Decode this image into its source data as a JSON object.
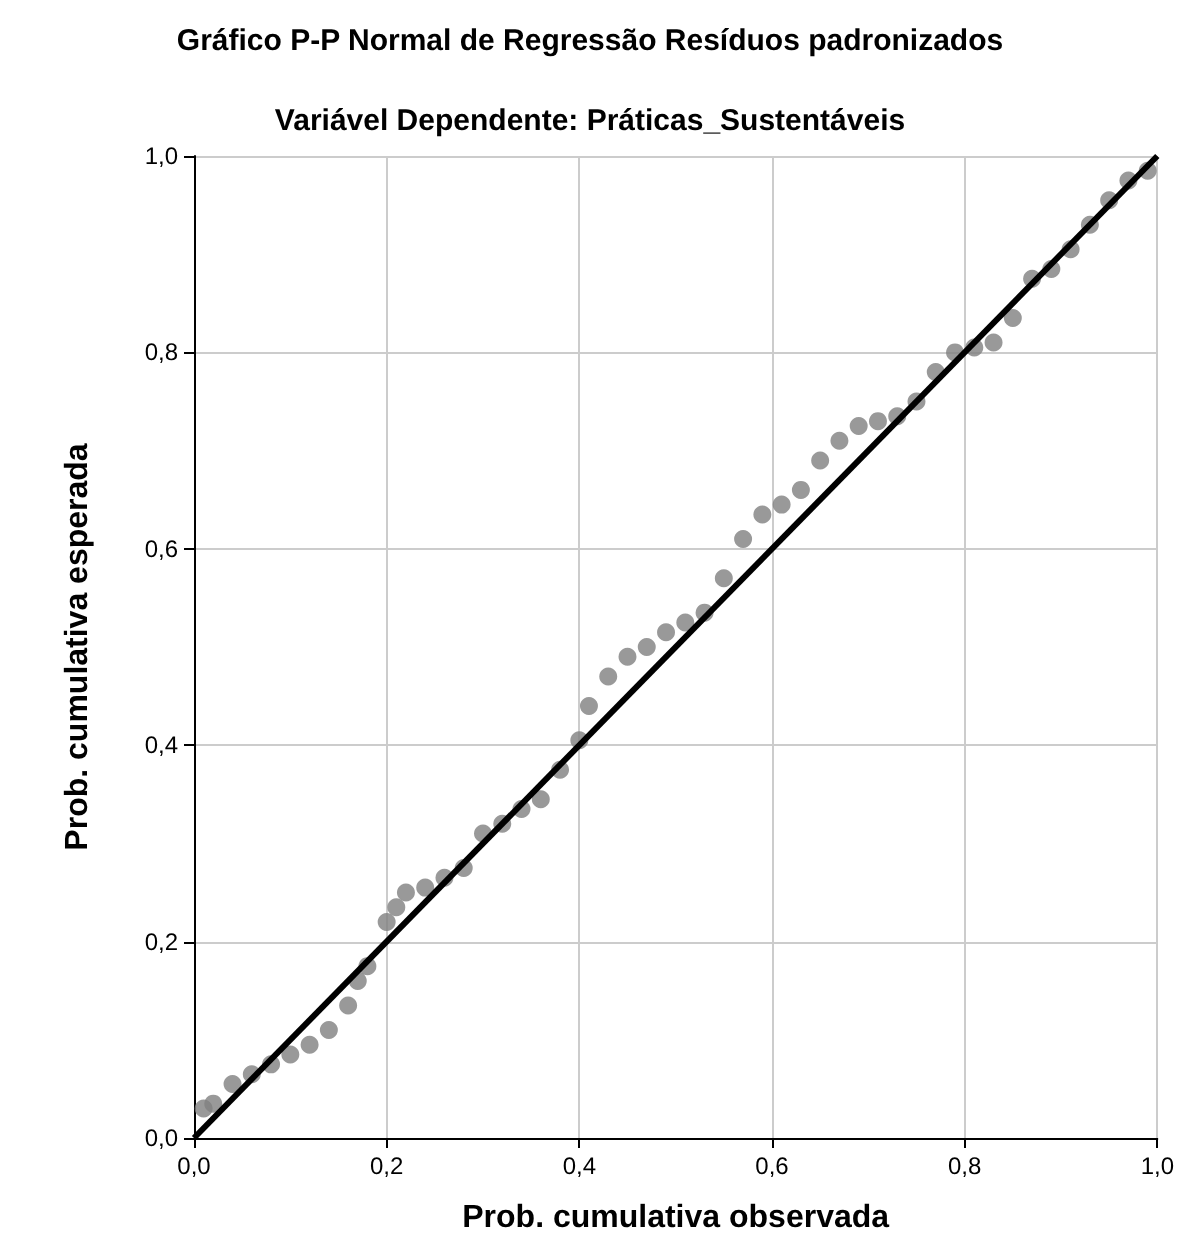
{
  "chart_data": {
    "type": "scatter",
    "title": "Gráfico P-P Normal de Regressão Resíduos padronizados",
    "subtitle": "Variável Dependente: Práticas_Sustentáveis",
    "xlabel": "Prob. cumulativa observada",
    "ylabel": "Prob. cumulativa esperada",
    "xlim": [
      0,
      1
    ],
    "ylim": [
      0,
      1
    ],
    "xticks": [
      {
        "value": 0,
        "label": "0,0"
      },
      {
        "value": 0.2,
        "label": "0,2"
      },
      {
        "value": 0.4,
        "label": "0,4"
      },
      {
        "value": 0.6,
        "label": "0,6"
      },
      {
        "value": 0.8,
        "label": "0,8"
      },
      {
        "value": 1,
        "label": "1,0"
      }
    ],
    "yticks": [
      {
        "value": 0,
        "label": "0,0"
      },
      {
        "value": 0.2,
        "label": "0,2"
      },
      {
        "value": 0.4,
        "label": "0,4"
      },
      {
        "value": 0.6,
        "label": "0,6"
      },
      {
        "value": 0.8,
        "label": "0,8"
      },
      {
        "value": 1,
        "label": "1,0"
      }
    ],
    "grid": true,
    "series": [
      {
        "marker": "circle",
        "color": "#7f7f7f",
        "x": [
          0.01,
          0.02,
          0.04,
          0.06,
          0.08,
          0.1,
          0.12,
          0.14,
          0.16,
          0.17,
          0.18,
          0.2,
          0.21,
          0.22,
          0.24,
          0.26,
          0.28,
          0.3,
          0.32,
          0.34,
          0.36,
          0.38,
          0.4,
          0.41,
          0.43,
          0.45,
          0.47,
          0.49,
          0.51,
          0.53,
          0.55,
          0.57,
          0.59,
          0.61,
          0.63,
          0.65,
          0.67,
          0.69,
          0.71,
          0.73,
          0.75,
          0.77,
          0.79,
          0.81,
          0.83,
          0.85,
          0.87,
          0.89,
          0.91,
          0.93,
          0.95,
          0.97,
          0.99
        ],
        "values": [
          0.03,
          0.035,
          0.055,
          0.065,
          0.075,
          0.085,
          0.095,
          0.11,
          0.135,
          0.16,
          0.175,
          0.22,
          0.235,
          0.25,
          0.255,
          0.265,
          0.275,
          0.31,
          0.32,
          0.335,
          0.345,
          0.375,
          0.405,
          0.44,
          0.47,
          0.49,
          0.5,
          0.515,
          0.525,
          0.535,
          0.57,
          0.61,
          0.635,
          0.645,
          0.66,
          0.69,
          0.71,
          0.725,
          0.73,
          0.735,
          0.75,
          0.78,
          0.8,
          0.805,
          0.81,
          0.835,
          0.875,
          0.885,
          0.905,
          0.93,
          0.955,
          0.975,
          0.985
        ]
      },
      {
        "type": "line",
        "marker": "none",
        "color": "#000000",
        "x": [
          0,
          1
        ],
        "values": [
          0,
          1
        ]
      }
    ]
  }
}
